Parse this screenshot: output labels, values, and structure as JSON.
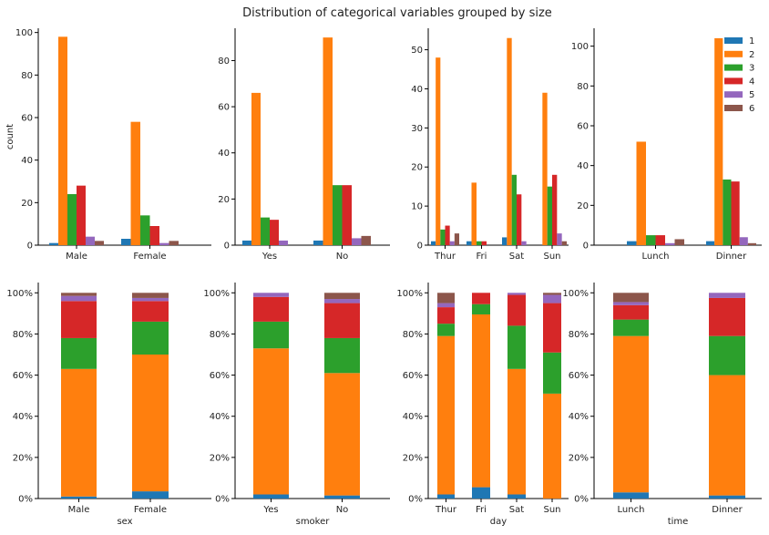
{
  "title": "Distribution of categorical variables grouped by size",
  "colors": {
    "1": "#1f77b4",
    "2": "#ff7f0e",
    "3": "#2ca02c",
    "4": "#d62728",
    "5": "#9467bd",
    "6": "#8c564b"
  },
  "legend": {
    "entries": [
      "1",
      "2",
      "3",
      "4",
      "5",
      "6"
    ],
    "placement": "top-right"
  },
  "chart_data": [
    {
      "type": "bar",
      "panel": "sex-count",
      "categories": [
        "Male",
        "Female"
      ],
      "ylabel": "count",
      "xlabel": "",
      "ylim": [
        0,
        102
      ],
      "yticks": [
        0,
        20,
        40,
        60,
        80,
        100
      ],
      "series": [
        {
          "name": "1",
          "values": [
            1,
            3
          ]
        },
        {
          "name": "2",
          "values": [
            98,
            58
          ]
        },
        {
          "name": "3",
          "values": [
            24,
            14
          ]
        },
        {
          "name": "4",
          "values": [
            28,
            9
          ]
        },
        {
          "name": "5",
          "values": [
            4,
            1
          ]
        },
        {
          "name": "6",
          "values": [
            2,
            2
          ]
        }
      ]
    },
    {
      "type": "bar",
      "panel": "smoker-count",
      "categories": [
        "Yes",
        "No"
      ],
      "ylabel": "",
      "xlabel": "",
      "ylim": [
        0,
        94
      ],
      "yticks": [
        0,
        20,
        40,
        60,
        80
      ],
      "series": [
        {
          "name": "1",
          "values": [
            2,
            2
          ]
        },
        {
          "name": "2",
          "values": [
            66,
            90
          ]
        },
        {
          "name": "3",
          "values": [
            12,
            26
          ]
        },
        {
          "name": "4",
          "values": [
            11,
            26
          ]
        },
        {
          "name": "5",
          "values": [
            2,
            3
          ]
        },
        {
          "name": "6",
          "values": [
            0,
            4
          ]
        }
      ]
    },
    {
      "type": "bar",
      "panel": "day-count",
      "categories": [
        "Thur",
        "Fri",
        "Sat",
        "Sun"
      ],
      "ylabel": "",
      "xlabel": "",
      "ylim": [
        0,
        55.5
      ],
      "yticks": [
        0,
        10,
        20,
        30,
        40,
        50
      ],
      "series": [
        {
          "name": "1",
          "values": [
            1,
            1,
            2,
            0
          ]
        },
        {
          "name": "2",
          "values": [
            48,
            16,
            53,
            39
          ]
        },
        {
          "name": "3",
          "values": [
            4,
            1,
            18,
            15
          ]
        },
        {
          "name": "4",
          "values": [
            5,
            1,
            13,
            18
          ]
        },
        {
          "name": "5",
          "values": [
            1,
            0,
            1,
            3
          ]
        },
        {
          "name": "6",
          "values": [
            3,
            0,
            0,
            1
          ]
        }
      ]
    },
    {
      "type": "bar",
      "panel": "time-count",
      "categories": [
        "Lunch",
        "Dinner"
      ],
      "ylabel": "",
      "xlabel": "",
      "ylim": [
        0,
        109
      ],
      "yticks": [
        0,
        20,
        40,
        60,
        80,
        100
      ],
      "series": [
        {
          "name": "1",
          "values": [
            2,
            2
          ]
        },
        {
          "name": "2",
          "values": [
            52,
            104
          ]
        },
        {
          "name": "3",
          "values": [
            5,
            33
          ]
        },
        {
          "name": "4",
          "values": [
            5,
            32
          ]
        },
        {
          "name": "5",
          "values": [
            1,
            4
          ]
        },
        {
          "name": "6",
          "values": [
            3,
            1
          ]
        }
      ]
    },
    {
      "type": "bar",
      "stacked": true,
      "panel": "sex-pct",
      "categories": [
        "Male",
        "Female"
      ],
      "xlabel": "sex",
      "ylabel": "",
      "ylim": [
        0,
        1.05
      ],
      "yticks": [
        "0%",
        "20%",
        "40%",
        "60%",
        "80%",
        "100%"
      ],
      "series": [
        {
          "name": "1",
          "values": [
            0.01,
            0.035
          ]
        },
        {
          "name": "2",
          "values": [
            0.62,
            0.665
          ]
        },
        {
          "name": "3",
          "values": [
            0.15,
            0.16
          ]
        },
        {
          "name": "4",
          "values": [
            0.18,
            0.1
          ]
        },
        {
          "name": "5",
          "values": [
            0.025,
            0.015
          ]
        },
        {
          "name": "6",
          "values": [
            0.015,
            0.025
          ]
        }
      ]
    },
    {
      "type": "bar",
      "stacked": true,
      "panel": "smoker-pct",
      "categories": [
        "Yes",
        "No"
      ],
      "xlabel": "smoker",
      "ylabel": "",
      "ylim": [
        0,
        1.05
      ],
      "yticks": [
        "0%",
        "20%",
        "40%",
        "60%",
        "80%",
        "100%"
      ],
      "series": [
        {
          "name": "1",
          "values": [
            0.02,
            0.015
          ]
        },
        {
          "name": "2",
          "values": [
            0.71,
            0.595
          ]
        },
        {
          "name": "3",
          "values": [
            0.13,
            0.17
          ]
        },
        {
          "name": "4",
          "values": [
            0.12,
            0.17
          ]
        },
        {
          "name": "5",
          "values": [
            0.02,
            0.02
          ]
        },
        {
          "name": "6",
          "values": [
            0,
            0.03
          ]
        }
      ]
    },
    {
      "type": "bar",
      "stacked": true,
      "panel": "day-pct",
      "categories": [
        "Thur",
        "Fri",
        "Sat",
        "Sun"
      ],
      "xlabel": "day",
      "ylabel": "",
      "ylim": [
        0,
        1.05
      ],
      "yticks": [
        "0%",
        "20%",
        "40%",
        "60%",
        "80%",
        "100%"
      ],
      "series": [
        {
          "name": "1",
          "values": [
            0.02,
            0.055,
            0.02,
            0
          ]
        },
        {
          "name": "2",
          "values": [
            0.77,
            0.84,
            0.61,
            0.51
          ]
        },
        {
          "name": "3",
          "values": [
            0.06,
            0.05,
            0.21,
            0.2
          ]
        },
        {
          "name": "4",
          "values": [
            0.08,
            0.055,
            0.15,
            0.24
          ]
        },
        {
          "name": "5",
          "values": [
            0.02,
            0,
            0.01,
            0.04
          ]
        },
        {
          "name": "6",
          "values": [
            0.05,
            0,
            0,
            0.01
          ]
        }
      ]
    },
    {
      "type": "bar",
      "stacked": true,
      "panel": "time-pct",
      "categories": [
        "Lunch",
        "Dinner"
      ],
      "xlabel": "time",
      "ylabel": "",
      "ylim": [
        0,
        1.05
      ],
      "yticks": [
        "0%",
        "20%",
        "40%",
        "60%",
        "80%",
        "100%"
      ],
      "series": [
        {
          "name": "1",
          "values": [
            0.03,
            0.015
          ]
        },
        {
          "name": "2",
          "values": [
            0.76,
            0.585
          ]
        },
        {
          "name": "3",
          "values": [
            0.08,
            0.19
          ]
        },
        {
          "name": "4",
          "values": [
            0.07,
            0.185
          ]
        },
        {
          "name": "5",
          "values": [
            0.015,
            0.025
          ]
        },
        {
          "name": "6",
          "values": [
            0.045,
            0
          ]
        }
      ]
    }
  ]
}
